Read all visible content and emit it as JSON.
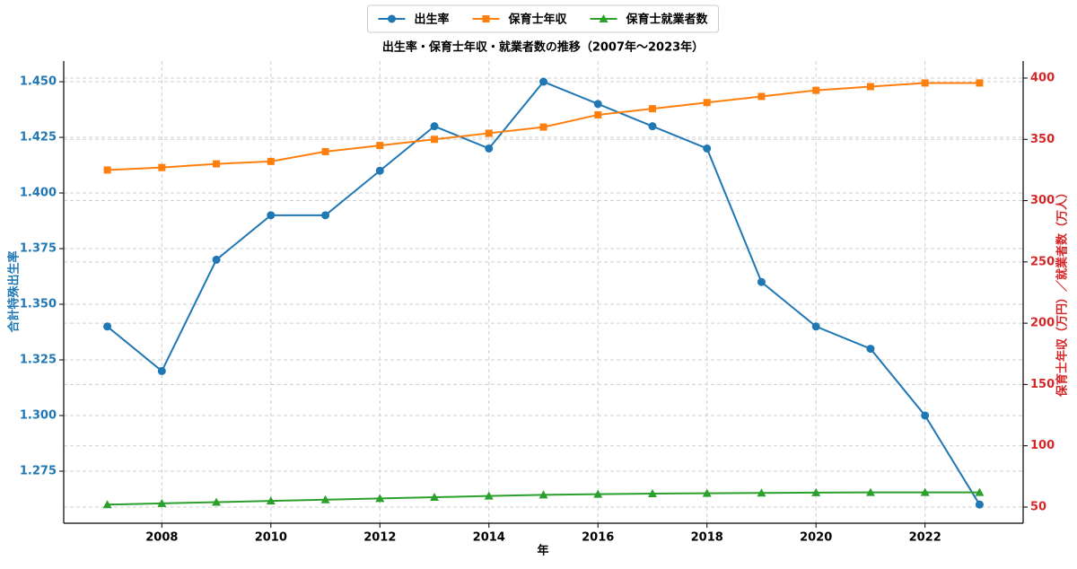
{
  "chart_data": {
    "type": "line",
    "title": "出生率・保育士年収・就業者数の推移（2007年〜2023年）",
    "x_label": "年",
    "y_label": "合計特殊出生率",
    "y2_label": "保育士年収（万円）／就業者数（万人）",
    "x": [
      2007,
      2008,
      2009,
      2010,
      2011,
      2012,
      2013,
      2014,
      2015,
      2016,
      2017,
      2018,
      2019,
      2020,
      2021,
      2022,
      2023
    ],
    "series": [
      {
        "name": "出生率",
        "color": "#1f77b4",
        "marker": "circle",
        "axis": "y",
        "values": [
          1.34,
          1.32,
          1.37,
          1.39,
          1.39,
          1.41,
          1.43,
          1.42,
          1.45,
          1.44,
          1.43,
          1.42,
          1.36,
          1.34,
          1.33,
          1.3,
          1.26
        ]
      },
      {
        "name": "保育士年収",
        "color": "#ff7f0e",
        "marker": "square",
        "axis": "y2",
        "values": [
          325,
          327,
          330,
          332,
          340,
          345,
          350,
          355,
          360,
          370,
          375,
          380,
          385,
          390,
          393,
          396,
          396
        ]
      },
      {
        "name": "保育士就業者数",
        "color": "#2ca02c",
        "marker": "triangle",
        "axis": "y2",
        "values": [
          52,
          53,
          54,
          55,
          56,
          57,
          58,
          59,
          60,
          60.5,
          61,
          61.2,
          61.5,
          61.8,
          62,
          62,
          62
        ]
      }
    ],
    "xlim": [
      2006.2,
      2023.8
    ],
    "xticks": [
      2008,
      2010,
      2012,
      2014,
      2016,
      2018,
      2020,
      2022
    ],
    "ylim": [
      1.2516,
      1.4593
    ],
    "yticks": [
      {
        "value": 1.275,
        "label": "1.275"
      },
      {
        "value": 1.3,
        "label": "1.300"
      },
      {
        "value": 1.325,
        "label": "1.325"
      },
      {
        "value": 1.35,
        "label": "1.350"
      },
      {
        "value": 1.375,
        "label": "1.375"
      },
      {
        "value": 1.4,
        "label": "1.400"
      },
      {
        "value": 1.425,
        "label": "1.425"
      },
      {
        "value": 1.45,
        "label": "1.450"
      }
    ],
    "y2lim": [
      36.8,
      413.9
    ],
    "y2ticks": [
      50,
      100,
      150,
      200,
      250,
      300,
      350,
      400
    ],
    "y_color": "#1f77b4",
    "y2_color": "#d62728",
    "grid": true,
    "legend": "top"
  }
}
